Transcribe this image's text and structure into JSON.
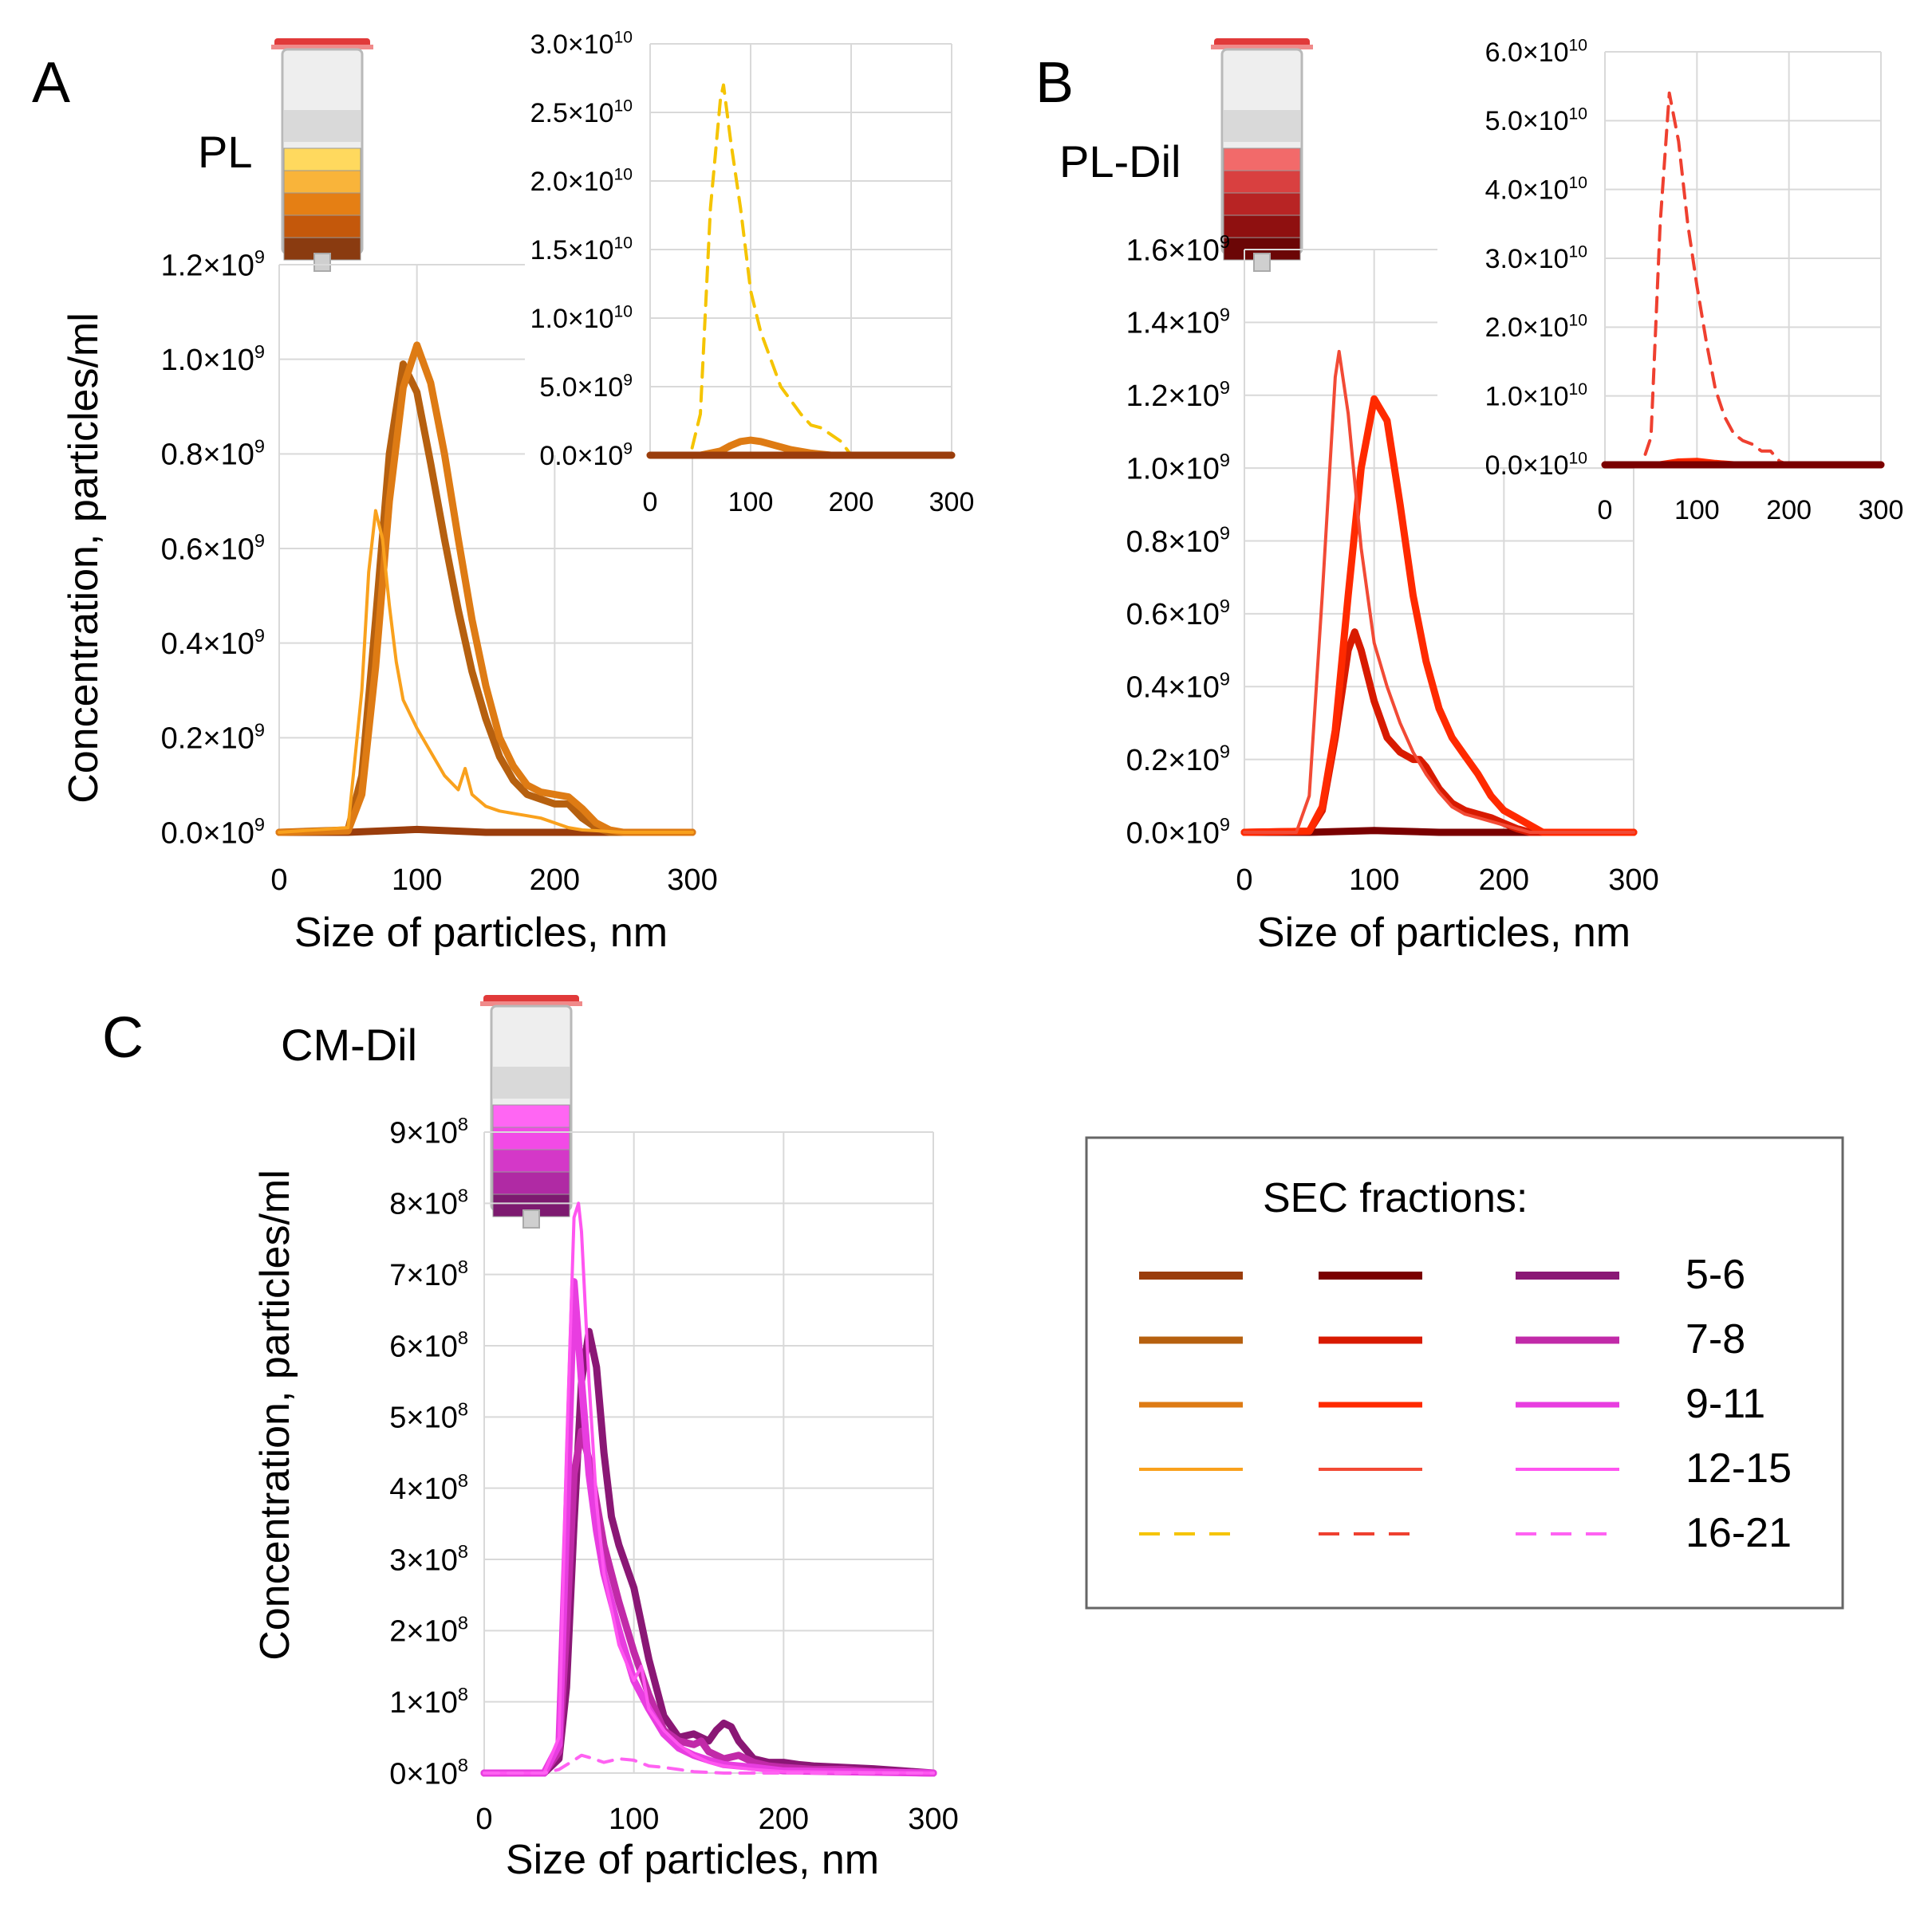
{
  "colors": {
    "PL": [
      "#9a3d0c",
      "#b6600f",
      "#de7b14",
      "#f9a11d",
      "#f5c400"
    ],
    "PL-Dil": [
      "#7a0000",
      "#d81a00",
      "#ff2a00",
      "#f24a35",
      "#ef4030"
    ],
    "CM-Dil": [
      "#8a1775",
      "#c12aa8",
      "#e83de0",
      "#ff55f0",
      "#ff62f2"
    ],
    "tubes": {
      "PL": [
        "#ffd95e",
        "#f9b43a",
        "#e57f14",
        "#c4580b",
        "#8a3b10"
      ],
      "PL-Dil": [
        "#f26a6a",
        "#d94040",
        "#b82424",
        "#8f1010",
        "#6b0606"
      ],
      "CM-Dil": [
        "#ff66f3",
        "#f24ae6",
        "#d438c8",
        "#b02aa4",
        "#7d1a70"
      ]
    }
  },
  "chart_data": [
    {
      "panel": "A",
      "sample": "PL",
      "type": "line",
      "xlabel": "Size of particles, nm",
      "ylabel": "Concentration, particles/ml",
      "xlim": [
        0,
        300
      ],
      "ylim": [
        0,
        1200000000.0
      ],
      "x_ticks": [
        "0",
        "100",
        "200",
        "300"
      ],
      "y_ticks": [
        "0.0×10",
        "0.2×10",
        "0.4×10",
        "0.6×10",
        "0.8×10",
        "1.0×10",
        "1.2×10"
      ],
      "y_tick_exp": "9",
      "series": [
        {
          "name": "5-6",
          "style": "thick",
          "x": [
            0,
            50,
            100,
            150,
            200,
            250,
            300
          ],
          "values": [
            0,
            0,
            6000000.0,
            0,
            0,
            0,
            0
          ]
        },
        {
          "name": "7-8",
          "style": "thick",
          "x": [
            0,
            50,
            60,
            70,
            80,
            90,
            100,
            110,
            120,
            130,
            140,
            150,
            160,
            170,
            180,
            190,
            200,
            210,
            220,
            230,
            240,
            250,
            300
          ],
          "values": [
            0,
            5000000.0,
            120000000.0,
            450000000.0,
            800000000.0,
            990000000.0,
            930000000.0,
            780000000.0,
            620000000.0,
            470000000.0,
            340000000.0,
            240000000.0,
            160000000.0,
            110000000.0,
            80000000.0,
            70000000.0,
            60000000.0,
            60000000.0,
            30000000.0,
            10000000.0,
            0,
            0,
            0
          ]
        },
        {
          "name": "9-11",
          "style": "thick",
          "x": [
            0,
            50,
            60,
            70,
            80,
            90,
            100,
            110,
            120,
            130,
            140,
            150,
            160,
            170,
            180,
            190,
            200,
            210,
            220,
            230,
            240,
            250,
            300
          ],
          "values": [
            0,
            3000000.0,
            80000000.0,
            350000000.0,
            700000000.0,
            940000000.0,
            1030000000.0,
            950000000.0,
            800000000.0,
            620000000.0,
            450000000.0,
            310000000.0,
            200000000.0,
            140000000.0,
            100000000.0,
            85000000.0,
            80000000.0,
            75000000.0,
            50000000.0,
            20000000.0,
            5000000.0,
            0,
            0
          ]
        },
        {
          "name": "12-15",
          "style": "thin",
          "x": [
            0,
            50,
            60,
            65,
            70,
            75,
            80,
            85,
            90,
            100,
            110,
            120,
            130,
            135,
            140,
            150,
            160,
            170,
            180,
            190,
            200,
            210,
            220,
            250,
            300
          ],
          "values": [
            0,
            10000000.0,
            300000000.0,
            550000000.0,
            680000000.0,
            620000000.0,
            480000000.0,
            360000000.0,
            280000000.0,
            220000000.0,
            170000000.0,
            120000000.0,
            90000000.0,
            135000000.0,
            80000000.0,
            55000000.0,
            45000000.0,
            40000000.0,
            35000000.0,
            30000000.0,
            20000000.0,
            10000000.0,
            5000000.0,
            0,
            0
          ]
        }
      ],
      "inset": {
        "xlim": [
          0,
          300
        ],
        "ylim": [
          0,
          30000000000.0
        ],
        "x_ticks": [
          "0",
          "100",
          "200",
          "300"
        ],
        "y_ticks": [
          "0.0×10",
          "5.0×10",
          "1.0×10",
          "1.5×10",
          "2.0×10",
          "2.5×10",
          "3.0×10"
        ],
        "y_tick_exps": [
          "9",
          "9",
          "10",
          "10",
          "10",
          "10",
          "10"
        ],
        "series": [
          {
            "name": "16-21",
            "style": "dashed",
            "x": [
              0,
              40,
              50,
              60,
              70,
              73,
              80,
              90,
              100,
              110,
              120,
              130,
              140,
              150,
              160,
              170,
              180,
              190,
              200,
              300
            ],
            "values": [
              0,
              0,
              3000000000.0,
              18000000000.0,
              26000000000.0,
              27000000000.0,
              23000000000.0,
              18000000000.0,
              12000000000.0,
              9000000000.0,
              7000000000.0,
              5000000000.0,
              4000000000.0,
              3000000000.0,
              2200000000.0,
              2000000000.0,
              1500000000.0,
              1000000000.0,
              0,
              0
            ]
          },
          {
            "name": "9-11",
            "style": "thick",
            "x": [
              0,
              50,
              70,
              80,
              90,
              100,
              110,
              120,
              140,
              160,
              180,
              200,
              300
            ],
            "values": [
              0,
              0,
              300000000.0,
              700000000.0,
              1000000000.0,
              1100000000.0,
              1000000000.0,
              800000000.0,
              400000000.0,
              150000000.0,
              0,
              0,
              0
            ]
          },
          {
            "name": "5-6",
            "style": "thick",
            "x": [
              0,
              300
            ],
            "values": [
              0,
              0
            ]
          }
        ]
      }
    },
    {
      "panel": "B",
      "sample": "PL-Dil",
      "type": "line",
      "xlabel": "Size of particles, nm",
      "ylabel": "",
      "xlim": [
        0,
        300
      ],
      "ylim": [
        0,
        1600000000.0
      ],
      "x_ticks": [
        "0",
        "100",
        "200",
        "300"
      ],
      "y_ticks": [
        "0.0×10",
        "0.2×10",
        "0.4×10",
        "0.6×10",
        "0.8×10",
        "1.0×10",
        "1.2×10",
        "1.4×10",
        "1.6×10"
      ],
      "y_tick_exp": "9",
      "series": [
        {
          "name": "5-6",
          "style": "thick",
          "x": [
            0,
            50,
            100,
            150,
            300
          ],
          "values": [
            0,
            0,
            5000000.0,
            0,
            0
          ]
        },
        {
          "name": "7-8",
          "style": "thick",
          "x": [
            0,
            50,
            60,
            70,
            80,
            85,
            90,
            100,
            110,
            120,
            130,
            135,
            140,
            150,
            160,
            170,
            180,
            190,
            200,
            210,
            220,
            250,
            300
          ],
          "values": [
            0,
            3000000.0,
            60000000.0,
            260000000.0,
            500000000.0,
            550000000.0,
            500000000.0,
            360000000.0,
            260000000.0,
            220000000.0,
            200000000.0,
            200000000.0,
            180000000.0,
            120000000.0,
            80000000.0,
            60000000.0,
            50000000.0,
            40000000.0,
            25000000.0,
            10000000.0,
            0,
            0,
            0
          ]
        },
        {
          "name": "9-11",
          "style": "thick",
          "x": [
            0,
            50,
            60,
            70,
            80,
            90,
            100,
            110,
            120,
            130,
            140,
            150,
            160,
            170,
            180,
            190,
            200,
            210,
            220,
            230,
            300
          ],
          "values": [
            0,
            3000000.0,
            70000000.0,
            280000000.0,
            650000000.0,
            1000000000.0,
            1190000000.0,
            1130000000.0,
            900000000.0,
            650000000.0,
            470000000.0,
            340000000.0,
            260000000.0,
            210000000.0,
            160000000.0,
            100000000.0,
            60000000.0,
            40000000.0,
            20000000.0,
            0,
            0
          ]
        },
        {
          "name": "12-15",
          "style": "thin",
          "x": [
            0,
            40,
            50,
            60,
            70,
            73,
            80,
            90,
            100,
            110,
            120,
            130,
            140,
            150,
            160,
            170,
            180,
            190,
            200,
            210,
            220,
            300
          ],
          "values": [
            0,
            0,
            100000000.0,
            650000000.0,
            1250000000.0,
            1320000000.0,
            1150000000.0,
            780000000.0,
            520000000.0,
            400000000.0,
            300000000.0,
            220000000.0,
            160000000.0,
            110000000.0,
            70000000.0,
            50000000.0,
            40000000.0,
            30000000.0,
            20000000.0,
            10000000.0,
            0,
            0
          ]
        }
      ],
      "inset": {
        "xlim": [
          0,
          300
        ],
        "ylim": [
          0,
          60000000000.0
        ],
        "x_ticks": [
          "0",
          "100",
          "200",
          "300"
        ],
        "y_ticks": [
          "0.0×10",
          "1.0×10",
          "2.0×10",
          "3.0×10",
          "4.0×10",
          "5.0×10",
          "6.0×10"
        ],
        "y_tick_exps": [
          "10",
          "10",
          "10",
          "10",
          "10",
          "10",
          "10"
        ],
        "series": [
          {
            "name": "16-21",
            "style": "dashed",
            "x": [
              0,
              40,
              50,
              60,
              70,
              80,
              90,
              100,
              110,
              120,
              130,
              140,
              150,
              160,
              170,
              180,
              190,
              200,
              300
            ],
            "values": [
              0,
              0,
              4000000000.0,
              35000000000.0,
              54000000000.0,
              47000000000.0,
              35000000000.0,
              26000000000.0,
              18000000000.0,
              11000000000.0,
              7000000000.0,
              4500000000.0,
              3500000000.0,
              3000000000.0,
              2000000000.0,
              2000000000.0,
              500000000.0,
              0,
              0
            ]
          },
          {
            "name": "9-11",
            "style": "thick",
            "x": [
              0,
              60,
              80,
              100,
              120,
              140,
              300
            ],
            "values": [
              0,
              0,
              400000000.0,
              500000000.0,
              200000000.0,
              0,
              0
            ]
          },
          {
            "name": "5-6",
            "style": "thick",
            "x": [
              0,
              300
            ],
            "values": [
              0,
              0
            ]
          }
        ]
      }
    },
    {
      "panel": "C",
      "sample": "CM-Dil",
      "type": "line",
      "xlabel": "Size of particles, nm",
      "ylabel": "Concentration, particles/ml",
      "xlim": [
        0,
        300
      ],
      "ylim": [
        0,
        900000000.0
      ],
      "x_ticks": [
        "0",
        "100",
        "200",
        "300"
      ],
      "y_ticks": [
        "0×10",
        "1×10",
        "2×10",
        "3×10",
        "4×10",
        "5×10",
        "6×10",
        "7×10",
        "8×10",
        "9×10"
      ],
      "y_tick_exp": "8",
      "series": [
        {
          "name": "5-6",
          "style": "thick",
          "x": [
            0,
            40,
            50,
            55,
            60,
            65,
            70,
            75,
            80,
            85,
            90,
            100,
            110,
            120,
            130,
            140,
            150,
            155,
            160,
            165,
            170,
            180,
            190,
            200,
            210,
            220,
            240,
            260,
            280,
            300
          ],
          "values": [
            0,
            0,
            20000000.0,
            120000000.0,
            350000000.0,
            550000000.0,
            620000000.0,
            570000000.0,
            450000000.0,
            360000000.0,
            320000000.0,
            260000000.0,
            160000000.0,
            80000000.0,
            50000000.0,
            55000000.0,
            45000000.0,
            60000000.0,
            70000000.0,
            65000000.0,
            45000000.0,
            20000000.0,
            15000000.0,
            15000000.0,
            12000000.0,
            10000000.0,
            8000000.0,
            6000000.0,
            3000000.0,
            0
          ]
        },
        {
          "name": "7-8",
          "style": "thick",
          "x": [
            0,
            40,
            50,
            55,
            60,
            65,
            70,
            75,
            80,
            90,
            100,
            110,
            120,
            130,
            140,
            145,
            150,
            160,
            170,
            180,
            190,
            200,
            220,
            240,
            260,
            300
          ],
          "values": [
            0,
            0,
            30000000.0,
            200000000.0,
            420000000.0,
            480000000.0,
            440000000.0,
            380000000.0,
            320000000.0,
            240000000.0,
            170000000.0,
            110000000.0,
            60000000.0,
            45000000.0,
            40000000.0,
            45000000.0,
            30000000.0,
            20000000.0,
            25000000.0,
            15000000.0,
            10000000.0,
            8000000.0,
            5000000.0,
            5000000.0,
            2000000.0,
            0
          ]
        },
        {
          "name": "9-11",
          "style": "thick",
          "x": [
            0,
            40,
            50,
            55,
            60,
            65,
            70,
            75,
            80,
            90,
            100,
            110,
            120,
            130,
            140,
            150,
            160,
            180,
            200,
            300
          ],
          "values": [
            0,
            0,
            40000000.0,
            350000000.0,
            690000000.0,
            550000000.0,
            420000000.0,
            340000000.0,
            280000000.0,
            200000000.0,
            130000000.0,
            90000000.0,
            55000000.0,
            35000000.0,
            25000000.0,
            18000000.0,
            12000000.0,
            8000000.0,
            3000000.0,
            0
          ]
        },
        {
          "name": "12-15",
          "style": "thin",
          "x": [
            0,
            40,
            50,
            55,
            60,
            63,
            65,
            70,
            75,
            80,
            90,
            100,
            105,
            110,
            120,
            130,
            140,
            150,
            160,
            180,
            200,
            300
          ],
          "values": [
            0,
            0,
            50000000.0,
            450000000.0,
            780000000.0,
            800000000.0,
            760000000.0,
            550000000.0,
            380000000.0,
            280000000.0,
            180000000.0,
            130000000.0,
            150000000.0,
            90000000.0,
            60000000.0,
            40000000.0,
            25000000.0,
            15000000.0,
            10000000.0,
            5000000.0,
            2000000.0,
            0
          ]
        },
        {
          "name": "16-21",
          "style": "dashed",
          "x": [
            0,
            40,
            50,
            60,
            65,
            70,
            80,
            90,
            100,
            110,
            120,
            130,
            140,
            160,
            180,
            300
          ],
          "values": [
            0,
            0,
            5000000.0,
            18000000.0,
            25000000.0,
            22000000.0,
            15000000.0,
            20000000.0,
            18000000.0,
            10000000.0,
            8000000.0,
            5000000.0,
            2000000.0,
            0,
            0,
            0
          ]
        }
      ]
    }
  ],
  "legend": {
    "title": "SEC fractions:",
    "labels": [
      "5-6",
      "7-8",
      "9-11",
      "12-15",
      "16-21"
    ]
  }
}
